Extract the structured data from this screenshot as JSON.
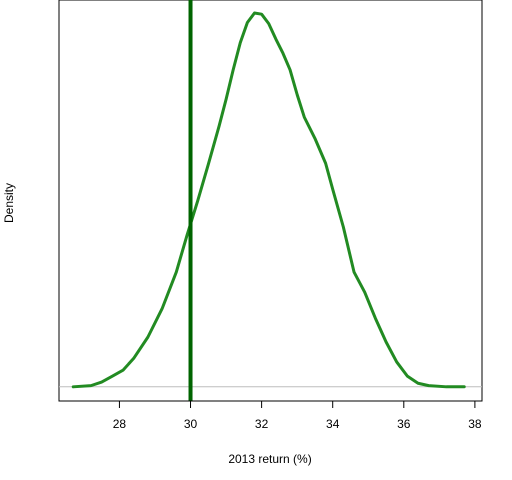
{
  "chart_data": {
    "type": "line",
    "title": "",
    "xlabel": "2013 return (%)",
    "ylabel": "Density",
    "xlim": [
      26.3,
      38.2
    ],
    "ylim": [
      -0.012,
      0.327
    ],
    "x_ticks": [
      28,
      30,
      32,
      34,
      36,
      38
    ],
    "y_ticks": [],
    "baseline": 0,
    "vline": {
      "x": 30,
      "color": "#006400"
    },
    "series": [
      {
        "color": "#228B22",
        "x": [
          26.7,
          27.2,
          27.5,
          27.8,
          28.1,
          28.4,
          28.8,
          29.2,
          29.6,
          29.9,
          30.2,
          30.5,
          30.8,
          31.0,
          31.2,
          31.4,
          31.6,
          31.8,
          32.0,
          32.2,
          32.4,
          32.6,
          32.8,
          33.0,
          33.2,
          33.5,
          33.8,
          34.0,
          34.3,
          34.6,
          34.9,
          35.2,
          35.5,
          35.8,
          36.1,
          36.4,
          36.7,
          37.2,
          37.7
        ],
        "y": [
          0.0,
          0.001,
          0.004,
          0.009,
          0.014,
          0.024,
          0.042,
          0.066,
          0.097,
          0.128,
          0.157,
          0.188,
          0.22,
          0.243,
          0.268,
          0.291,
          0.308,
          0.316,
          0.315,
          0.307,
          0.294,
          0.282,
          0.268,
          0.247,
          0.228,
          0.21,
          0.189,
          0.167,
          0.135,
          0.097,
          0.08,
          0.058,
          0.038,
          0.021,
          0.009,
          0.003,
          0.001,
          0.0,
          0.0
        ]
      }
    ]
  }
}
